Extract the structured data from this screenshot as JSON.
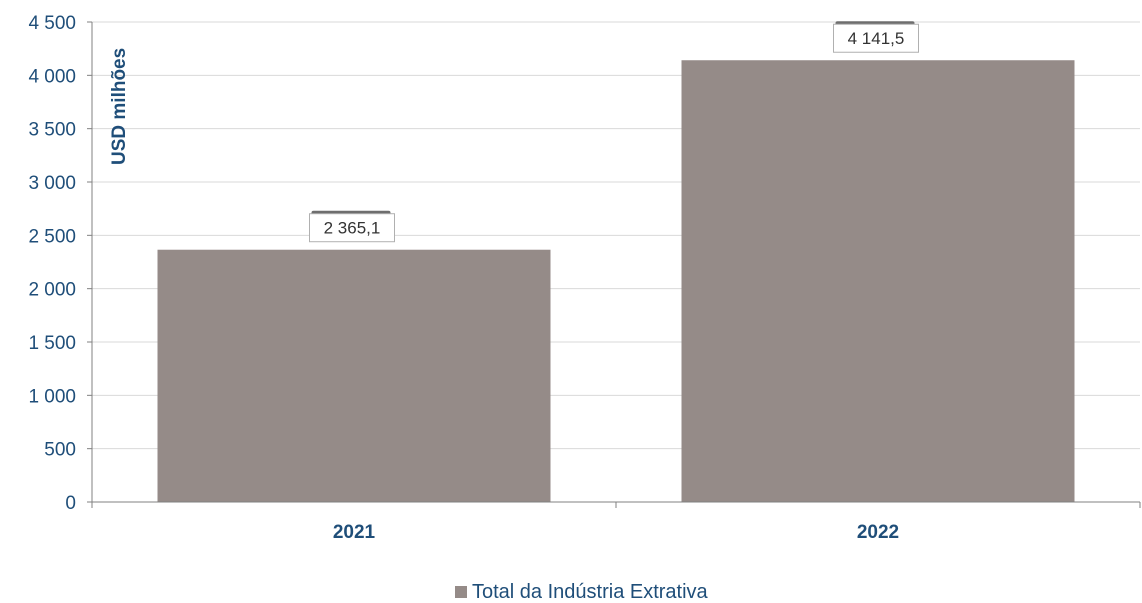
{
  "chart_data": {
    "type": "bar",
    "categories": [
      "2021",
      "2022"
    ],
    "series": [
      {
        "name": "Total da Indústria Extrativa",
        "values": [
          2365.1,
          4141.5
        ]
      }
    ],
    "data_labels": [
      "2 365,1",
      "4 141,5"
    ],
    "title": "",
    "xlabel": "",
    "ylabel": "USD milhões",
    "ylim": [
      0,
      4500
    ],
    "yticks": [
      0,
      500,
      1000,
      1500,
      2000,
      2500,
      3000,
      3500,
      4000,
      4500
    ],
    "ytick_labels": [
      "0",
      "500",
      "1 000",
      "1 500",
      "2 000",
      "2 500",
      "3 000",
      "3 500",
      "4 000",
      "4 500"
    ],
    "grid": true,
    "legend_position": "bottom-center",
    "colors": {
      "bar": "#958b88",
      "text": "#1f4e79",
      "grid": "#d9d9d9",
      "axis": "#808080",
      "label_box_border": "#b0b0b0",
      "label_shadow": "#6e6e6e"
    }
  }
}
